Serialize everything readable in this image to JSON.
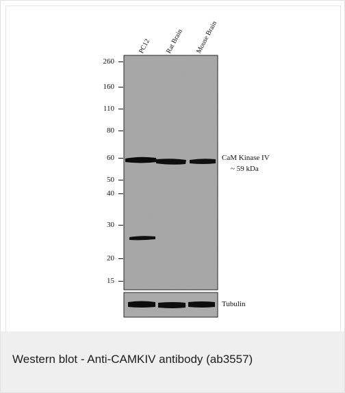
{
  "blot": {
    "lanes": [
      "PC12",
      "Rat Brain",
      "Mouse Brain"
    ],
    "markers": [
      "260",
      "160",
      "110",
      "80",
      "60",
      "50",
      "40",
      "30",
      "20",
      "15"
    ],
    "target_label": "CaM Kinase IV",
    "target_size": "~ 59 kDa",
    "loading_control": "Tubulin"
  },
  "caption": "Western blot - Anti-CAMKIV antibody (ab3557)"
}
